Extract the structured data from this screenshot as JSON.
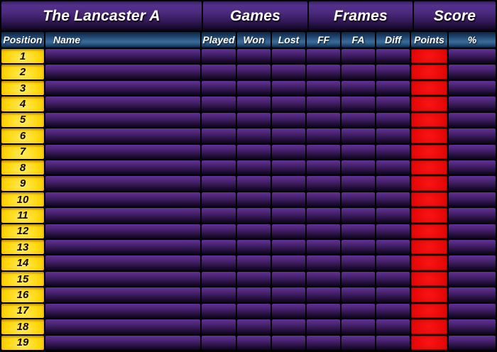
{
  "table": {
    "group_headers": [
      {
        "label": "The Lancaster A"
      },
      {
        "label": "Games"
      },
      {
        "label": "Frames"
      },
      {
        "label": "Score"
      }
    ],
    "columns": [
      "Position",
      "Name",
      "Played",
      "Won",
      "Lost",
      "FF",
      "FA",
      "Diff",
      "Points",
      "%"
    ],
    "rows": [
      {
        "position": "1",
        "name": "",
        "played": "",
        "won": "",
        "lost": "",
        "ff": "",
        "fa": "",
        "diff": "",
        "points": "",
        "percent": ""
      },
      {
        "position": "2",
        "name": "",
        "played": "",
        "won": "",
        "lost": "",
        "ff": "",
        "fa": "",
        "diff": "",
        "points": "",
        "percent": ""
      },
      {
        "position": "3",
        "name": "",
        "played": "",
        "won": "",
        "lost": "",
        "ff": "",
        "fa": "",
        "diff": "",
        "points": "",
        "percent": ""
      },
      {
        "position": "4",
        "name": "",
        "played": "",
        "won": "",
        "lost": "",
        "ff": "",
        "fa": "",
        "diff": "",
        "points": "",
        "percent": ""
      },
      {
        "position": "5",
        "name": "",
        "played": "",
        "won": "",
        "lost": "",
        "ff": "",
        "fa": "",
        "diff": "",
        "points": "",
        "percent": ""
      },
      {
        "position": "6",
        "name": "",
        "played": "",
        "won": "",
        "lost": "",
        "ff": "",
        "fa": "",
        "diff": "",
        "points": "",
        "percent": ""
      },
      {
        "position": "7",
        "name": "",
        "played": "",
        "won": "",
        "lost": "",
        "ff": "",
        "fa": "",
        "diff": "",
        "points": "",
        "percent": ""
      },
      {
        "position": "8",
        "name": "",
        "played": "",
        "won": "",
        "lost": "",
        "ff": "",
        "fa": "",
        "diff": "",
        "points": "",
        "percent": ""
      },
      {
        "position": "9",
        "name": "",
        "played": "",
        "won": "",
        "lost": "",
        "ff": "",
        "fa": "",
        "diff": "",
        "points": "",
        "percent": ""
      },
      {
        "position": "10",
        "name": "",
        "played": "",
        "won": "",
        "lost": "",
        "ff": "",
        "fa": "",
        "diff": "",
        "points": "",
        "percent": ""
      },
      {
        "position": "11",
        "name": "",
        "played": "",
        "won": "",
        "lost": "",
        "ff": "",
        "fa": "",
        "diff": "",
        "points": "",
        "percent": ""
      },
      {
        "position": "12",
        "name": "",
        "played": "",
        "won": "",
        "lost": "",
        "ff": "",
        "fa": "",
        "diff": "",
        "points": "",
        "percent": ""
      },
      {
        "position": "13",
        "name": "",
        "played": "",
        "won": "",
        "lost": "",
        "ff": "",
        "fa": "",
        "diff": "",
        "points": "",
        "percent": ""
      },
      {
        "position": "14",
        "name": "",
        "played": "",
        "won": "",
        "lost": "",
        "ff": "",
        "fa": "",
        "diff": "",
        "points": "",
        "percent": ""
      },
      {
        "position": "15",
        "name": "",
        "played": "",
        "won": "",
        "lost": "",
        "ff": "",
        "fa": "",
        "diff": "",
        "points": "",
        "percent": ""
      },
      {
        "position": "16",
        "name": "",
        "played": "",
        "won": "",
        "lost": "",
        "ff": "",
        "fa": "",
        "diff": "",
        "points": "",
        "percent": ""
      },
      {
        "position": "17",
        "name": "",
        "played": "",
        "won": "",
        "lost": "",
        "ff": "",
        "fa": "",
        "diff": "",
        "points": "",
        "percent": ""
      },
      {
        "position": "18",
        "name": "",
        "played": "",
        "won": "",
        "lost": "",
        "ff": "",
        "fa": "",
        "diff": "",
        "points": "",
        "percent": ""
      },
      {
        "position": "19",
        "name": "",
        "played": "",
        "won": "",
        "lost": "",
        "ff": "",
        "fa": "",
        "diff": "",
        "points": "",
        "percent": ""
      }
    ]
  },
  "colors": {
    "background": "#000000",
    "group_header_purple": "#54318c",
    "column_header_blue": "#30608c",
    "row_purple_top": "#5f3194",
    "row_purple_bottom": "#0e051a",
    "position_yellow": "#ffd80e",
    "points_red": "#e60808",
    "text_light": "#ffffff",
    "text_dark": "#0d0d0d"
  }
}
